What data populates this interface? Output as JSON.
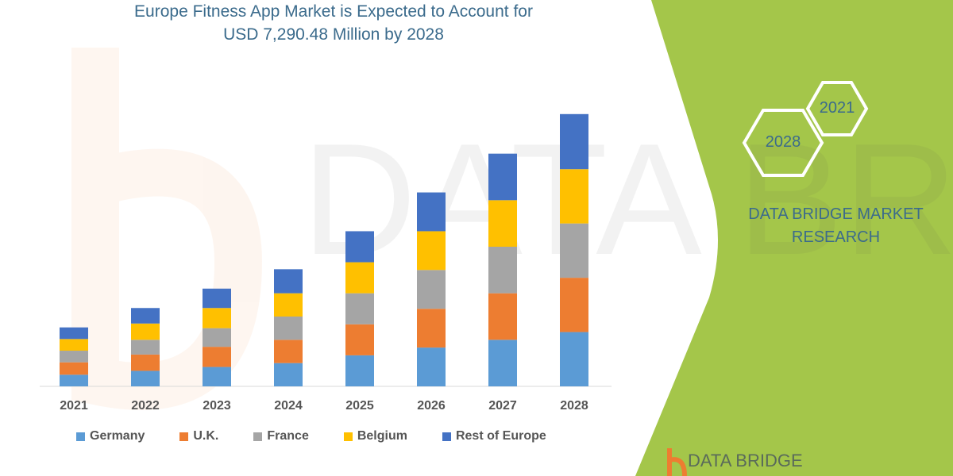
{
  "title_line1": "Europe Fitness App Market is Expected to Account for",
  "title_line2": "USD 7,290.48 Million by 2028",
  "badges": {
    "hex_a": "2028",
    "hex_b": "2021"
  },
  "brand_line1": "DATA BRIDGE MARKET",
  "brand_line2": "RESEARCH",
  "logo_text": "DATA BRIDGE",
  "colors": {
    "panel": "#a4c64a",
    "accent_text": "#3b6b8c"
  },
  "chart_data": {
    "type": "bar",
    "stacked": true,
    "title": "Europe Fitness App Market is Expected to Account for USD 7,290.48 Million by 2028",
    "categories": [
      "2021",
      "2022",
      "2023",
      "2024",
      "2025",
      "2026",
      "2027",
      "2028"
    ],
    "series": [
      {
        "name": "Germany",
        "color": "#5b9bd5",
        "values": [
          15,
          20,
          25,
          30,
          40,
          50,
          60,
          70
        ]
      },
      {
        "name": "U.K.",
        "color": "#ed7d31",
        "values": [
          16,
          21,
          26,
          30,
          40,
          50,
          60,
          70
        ]
      },
      {
        "name": "France",
        "color": "#a5a5a5",
        "values": [
          15,
          19,
          24,
          30,
          40,
          50,
          60,
          70
        ]
      },
      {
        "name": "Belgium",
        "color": "#ffc000",
        "values": [
          15,
          21,
          26,
          30,
          40,
          50,
          60,
          70
        ]
      },
      {
        "name": "Rest of Europe",
        "color": "#4472c4",
        "values": [
          15,
          20,
          25,
          31,
          40,
          50,
          60,
          71
        ]
      }
    ],
    "xlabel": "",
    "ylabel": "",
    "ylim": [
      0,
      360
    ],
    "y_axis_shown": false,
    "grid": false,
    "legend": "bottom"
  }
}
